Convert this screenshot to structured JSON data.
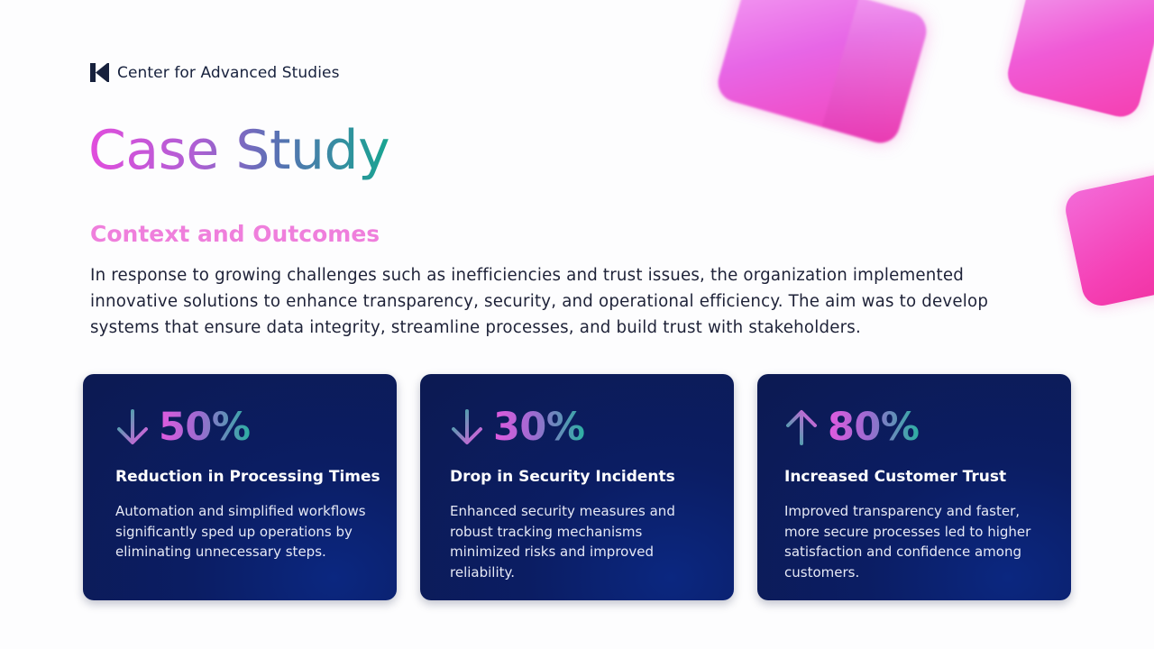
{
  "brand": {
    "name": "Center for Advanced Studies",
    "logo_icon": "k-logo-icon"
  },
  "title": "Case Study",
  "subtitle": "Context and Outcomes",
  "intro": "In response to growing challenges such as inefficiencies and trust issues, the organization implemented innovative solutions to enhance transparency, security, and operational efficiency. The aim was to develop systems that ensure data integrity, streamline processes, and build trust with stakeholders.",
  "colors": {
    "navy_card": "#0c1a52",
    "pink_accent": "#ef7fdc",
    "teal_accent": "#18a591"
  },
  "metrics": [
    {
      "icon": "arrow-down-icon",
      "value": "50%",
      "title": "Reduction in Processing Times",
      "description": "Automation and simplified workflows significantly sped up operations by eliminating unnecessary steps."
    },
    {
      "icon": "arrow-down-icon",
      "value": "30%",
      "title": "Drop in Security Incidents",
      "description": "Enhanced security measures and robust tracking mechanisms minimized risks and improved reliability."
    },
    {
      "icon": "arrow-up-icon",
      "value": "80%",
      "title": "Increased Customer Trust",
      "description": "Improved transparency and faster, more secure processes led to higher satisfaction and confidence among customers."
    }
  ]
}
